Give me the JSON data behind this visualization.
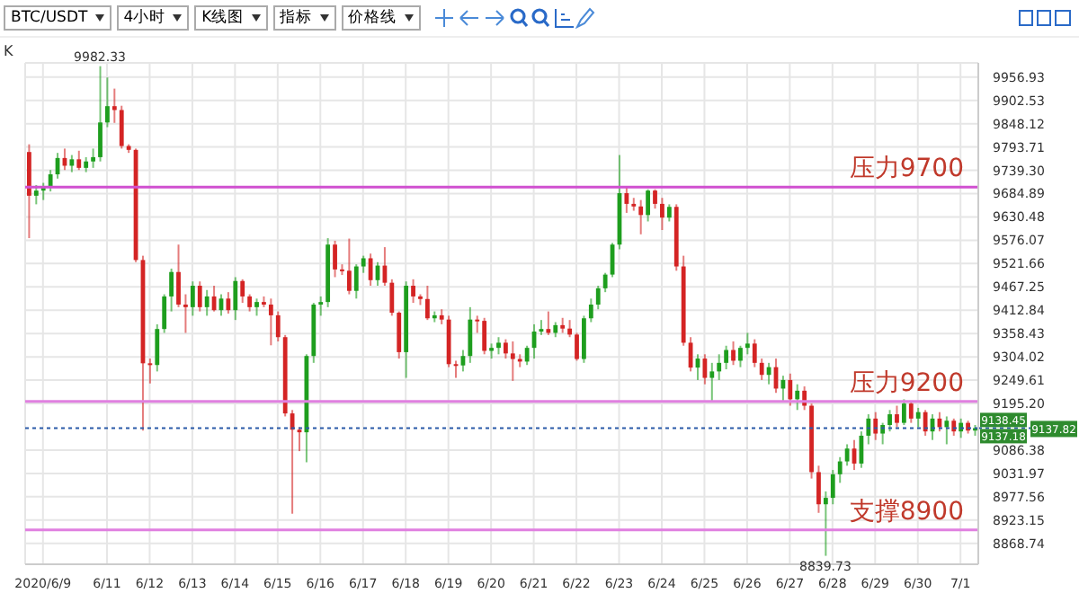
{
  "chart_data": {
    "type": "candlestick",
    "categories": [
      null,
      null,
      "2020/6/9",
      null,
      null,
      null,
      null,
      null,
      null,
      null,
      null,
      "6/11",
      null,
      null,
      null,
      null,
      null,
      "6/12",
      null,
      null,
      null,
      null,
      null,
      "6/13",
      null,
      null,
      null,
      null,
      null,
      "6/14",
      null,
      null,
      null,
      null,
      null,
      "6/15",
      null,
      null,
      null,
      null,
      null,
      "6/16",
      null,
      null,
      null,
      null,
      null,
      "6/17",
      null,
      null,
      null,
      null,
      null,
      "6/18",
      null,
      null,
      null,
      null,
      null,
      "6/19",
      null,
      null,
      null,
      null,
      null,
      "6/20",
      null,
      null,
      null,
      null,
      null,
      "6/21",
      null,
      null,
      null,
      null,
      null,
      "6/22",
      null,
      null,
      null,
      null,
      null,
      "6/23",
      null,
      null,
      null,
      null,
      null,
      "6/24",
      null,
      null,
      null,
      null,
      null,
      "6/25",
      null,
      null,
      null,
      null,
      null,
      "6/26",
      null,
      null,
      null,
      null,
      null,
      "6/27",
      null,
      null,
      null,
      null,
      null,
      "6/28",
      null,
      null,
      null,
      null,
      null,
      "6/29",
      null,
      null,
      null,
      null,
      null,
      "6/30",
      null,
      null,
      null,
      null,
      null,
      "7/1",
      null,
      null
    ],
    "ohlc": [
      [
        9782,
        9800,
        9581,
        9680
      ],
      [
        9680,
        9705,
        9660,
        9692
      ],
      [
        9692,
        9710,
        9670,
        9700
      ],
      [
        9700,
        9740,
        9690,
        9730
      ],
      [
        9730,
        9780,
        9720,
        9768
      ],
      [
        9768,
        9790,
        9740,
        9750
      ],
      [
        9750,
        9775,
        9735,
        9765
      ],
      [
        9765,
        9785,
        9740,
        9745
      ],
      [
        9745,
        9770,
        9735,
        9760
      ],
      [
        9760,
        9790,
        9745,
        9770
      ],
      [
        9770,
        9982.33,
        9760,
        9851
      ],
      [
        9851,
        9956,
        9840,
        9889
      ],
      [
        9889,
        9930,
        9850,
        9880
      ],
      [
        9880,
        9890,
        9790,
        9796
      ],
      [
        9796,
        9800,
        9780,
        9787
      ],
      [
        9787,
        9790,
        9525,
        9530
      ],
      [
        9530,
        9540,
        9132,
        9289
      ],
      [
        9289,
        9300,
        9242,
        9285
      ],
      [
        9285,
        9380,
        9270,
        9369
      ],
      [
        9369,
        9450,
        9360,
        9445
      ],
      [
        9445,
        9510,
        9410,
        9502
      ],
      [
        9502,
        9566,
        9420,
        9426
      ],
      [
        9426,
        9450,
        9360,
        9420
      ],
      [
        9420,
        9480,
        9400,
        9470
      ],
      [
        9470,
        9480,
        9410,
        9420
      ],
      [
        9420,
        9460,
        9400,
        9445
      ],
      [
        9445,
        9470,
        9410,
        9413
      ],
      [
        9413,
        9450,
        9400,
        9440
      ],
      [
        9440,
        9455,
        9405,
        9413
      ],
      [
        9413,
        9490,
        9390,
        9481
      ],
      [
        9481,
        9485,
        9430,
        9445
      ],
      [
        9445,
        9450,
        9410,
        9420
      ],
      [
        9420,
        9440,
        9400,
        9432
      ],
      [
        9432,
        9445,
        9420,
        9426
      ],
      [
        9426,
        9440,
        9331,
        9401
      ],
      [
        9401,
        9410,
        9340,
        9350
      ],
      [
        9350,
        9355,
        9165,
        9172
      ],
      [
        9172,
        9180,
        8938,
        9134
      ],
      [
        9134,
        9140,
        9084,
        9128
      ],
      [
        9128,
        9310,
        9058,
        9306
      ],
      [
        9306,
        9430,
        9290,
        9426
      ],
      [
        9426,
        9445,
        9400,
        9432
      ],
      [
        9432,
        9581,
        9420,
        9566
      ],
      [
        9566,
        9575,
        9490,
        9508
      ],
      [
        9508,
        9520,
        9495,
        9505
      ],
      [
        9505,
        9580,
        9450,
        9458
      ],
      [
        9458,
        9520,
        9440,
        9515
      ],
      [
        9515,
        9540,
        9500,
        9534
      ],
      [
        9534,
        9545,
        9470,
        9483
      ],
      [
        9483,
        9525,
        9470,
        9517
      ],
      [
        9517,
        9560,
        9470,
        9477
      ],
      [
        9477,
        9485,
        9400,
        9407
      ],
      [
        9407,
        9410,
        9300,
        9315
      ],
      [
        9315,
        9480,
        9255,
        9470
      ],
      [
        9470,
        9485,
        9430,
        9445
      ],
      [
        9445,
        9450,
        9425,
        9439
      ],
      [
        9439,
        9470,
        9390,
        9394
      ],
      [
        9394,
        9410,
        9385,
        9401
      ],
      [
        9401,
        9415,
        9380,
        9391
      ],
      [
        9391,
        9400,
        9280,
        9287
      ],
      [
        9287,
        9295,
        9255,
        9284
      ],
      [
        9284,
        9320,
        9270,
        9306
      ],
      [
        9306,
        9420,
        9290,
        9391
      ],
      [
        9391,
        9400,
        9360,
        9388
      ],
      [
        9388,
        9395,
        9310,
        9318
      ],
      [
        9318,
        9335,
        9300,
        9325
      ],
      [
        9325,
        9350,
        9310,
        9337
      ],
      [
        9337,
        9345,
        9300,
        9312
      ],
      [
        9312,
        9340,
        9248,
        9299
      ],
      [
        9299,
        9310,
        9280,
        9293
      ],
      [
        9293,
        9330,
        9285,
        9325
      ],
      [
        9325,
        9380,
        9300,
        9363
      ],
      [
        9363,
        9390,
        9355,
        9369
      ],
      [
        9369,
        9410,
        9355,
        9360
      ],
      [
        9360,
        9385,
        9350,
        9378
      ],
      [
        9378,
        9395,
        9360,
        9370
      ],
      [
        9370,
        9390,
        9350,
        9356
      ],
      [
        9356,
        9360,
        9295,
        9299
      ],
      [
        9299,
        9400,
        9290,
        9394
      ],
      [
        9394,
        9440,
        9385,
        9426
      ],
      [
        9426,
        9470,
        9415,
        9464
      ],
      [
        9464,
        9500,
        9455,
        9496
      ],
      [
        9496,
        9570,
        9490,
        9566
      ],
      [
        9566,
        9775,
        9555,
        9686
      ],
      [
        9686,
        9700,
        9640,
        9661
      ],
      [
        9661,
        9675,
        9645,
        9655
      ],
      [
        9655,
        9670,
        9590,
        9635
      ],
      [
        9635,
        9695,
        9620,
        9692
      ],
      [
        9692,
        9695,
        9650,
        9661
      ],
      [
        9661,
        9675,
        9600,
        9629
      ],
      [
        9629,
        9660,
        9620,
        9654
      ],
      [
        9654,
        9660,
        9505,
        9515
      ],
      [
        9515,
        9540,
        9330,
        9337
      ],
      [
        9337,
        9350,
        9270,
        9279
      ],
      [
        9279,
        9310,
        9250,
        9300
      ],
      [
        9300,
        9310,
        9240,
        9255
      ],
      [
        9255,
        9290,
        9200,
        9270
      ],
      [
        9270,
        9310,
        9250,
        9290
      ],
      [
        9290,
        9330,
        9275,
        9320
      ],
      [
        9320,
        9340,
        9285,
        9295
      ],
      [
        9295,
        9330,
        9280,
        9325
      ],
      [
        9325,
        9360,
        9310,
        9335
      ],
      [
        9335,
        9345,
        9280,
        9290
      ],
      [
        9290,
        9300,
        9250,
        9262
      ],
      [
        9262,
        9290,
        9240,
        9280
      ],
      [
        9280,
        9300,
        9220,
        9230
      ],
      [
        9230,
        9260,
        9200,
        9250
      ],
      [
        9250,
        9265,
        9190,
        9205
      ],
      [
        9205,
        9240,
        9180,
        9225
      ],
      [
        9225,
        9235,
        9180,
        9190
      ],
      [
        9190,
        9195,
        9020,
        9035
      ],
      [
        9035,
        9050,
        8940,
        8960
      ],
      [
        8960,
        8990,
        8839.73,
        8975
      ],
      [
        8975,
        9040,
        8960,
        9030
      ],
      [
        9030,
        9070,
        9010,
        9060
      ],
      [
        9060,
        9100,
        9050,
        9090
      ],
      [
        9090,
        9110,
        9040,
        9055
      ],
      [
        9055,
        9130,
        9045,
        9120
      ],
      [
        9120,
        9170,
        9100,
        9160
      ],
      [
        9160,
        9175,
        9110,
        9125
      ],
      [
        9125,
        9150,
        9100,
        9145
      ],
      [
        9145,
        9180,
        9130,
        9170
      ],
      [
        9170,
        9190,
        9140,
        9150
      ],
      [
        9150,
        9205,
        9145,
        9195
      ],
      [
        9195,
        9200,
        9150,
        9160
      ],
      [
        9160,
        9185,
        9140,
        9175
      ],
      [
        9175,
        9180,
        9120,
        9130
      ],
      [
        9130,
        9170,
        9110,
        9160
      ],
      [
        9160,
        9175,
        9130,
        9140
      ],
      [
        9140,
        9165,
        9100,
        9155
      ],
      [
        9155,
        9160,
        9120,
        9130
      ],
      [
        9130,
        9160,
        9115,
        9150
      ],
      [
        9150,
        9155,
        9125,
        9132
      ],
      [
        9132,
        9145,
        9120,
        9137.82
      ]
    ],
    "ylim": [
      8820,
      9990
    ],
    "yticks": [
      8868.74,
      8923.15,
      8977.56,
      9031.97,
      9086.38,
      {
        "value": 9195.2,
        "label": "9195.20"
      },
      9249.61,
      9304.02,
      9358.43,
      9412.84,
      9467.25,
      9521.66,
      9576.07,
      9630.48,
      9684.89,
      {
        "value": 9739.3,
        "label": "9739.30"
      },
      9793.71,
      9848.12,
      9902.53,
      9956.93
    ],
    "grid": true,
    "ref_lines": [
      {
        "axis": "y",
        "value": 9700,
        "label": "压力9700",
        "color": "#d050d0"
      },
      {
        "axis": "y",
        "value": 9200,
        "label": "压力9200",
        "color": "#e080e0"
      },
      {
        "axis": "y",
        "value": 8900,
        "label": "支撑8900",
        "color": "#e080e0"
      },
      {
        "axis": "y",
        "value": 9137.82,
        "label": "9137.82",
        "color": "#2a5aa8",
        "line_style": "dotted"
      }
    ],
    "annotations": [
      "K",
      "BTC/USDT",
      "4小时",
      "K线图",
      "指标",
      "价格线",
      {
        "text": "9982.33",
        "y": 9982.33
      },
      {
        "text": "8839.73",
        "y": 8839.73
      },
      "9138.45",
      "9137.18"
    ]
  }
}
